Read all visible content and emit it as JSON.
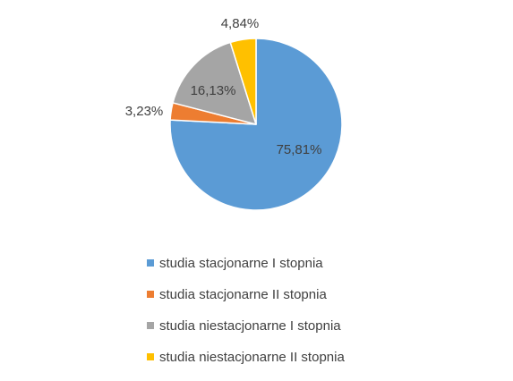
{
  "chart_data": {
    "type": "pie",
    "title": "",
    "start_angle_deg": 0,
    "direction": "clockwise",
    "legend_position": "bottom",
    "slices": [
      {
        "label": "studia stacjonarne I stopnia",
        "value": 75.81,
        "display": "75,81%",
        "color": "#5B9BD5"
      },
      {
        "label": "studia stacjonarne II stopnia",
        "value": 3.23,
        "display": "3,23%",
        "color": "#ED7D31"
      },
      {
        "label": "studia niestacjonarne I stopnia",
        "value": 16.13,
        "display": "16,13%",
        "color": "#A5A5A5"
      },
      {
        "label": "studia niestacjonarne II stopnia",
        "value": 4.84,
        "display": "4,84%",
        "color": "#FFC000"
      }
    ]
  }
}
